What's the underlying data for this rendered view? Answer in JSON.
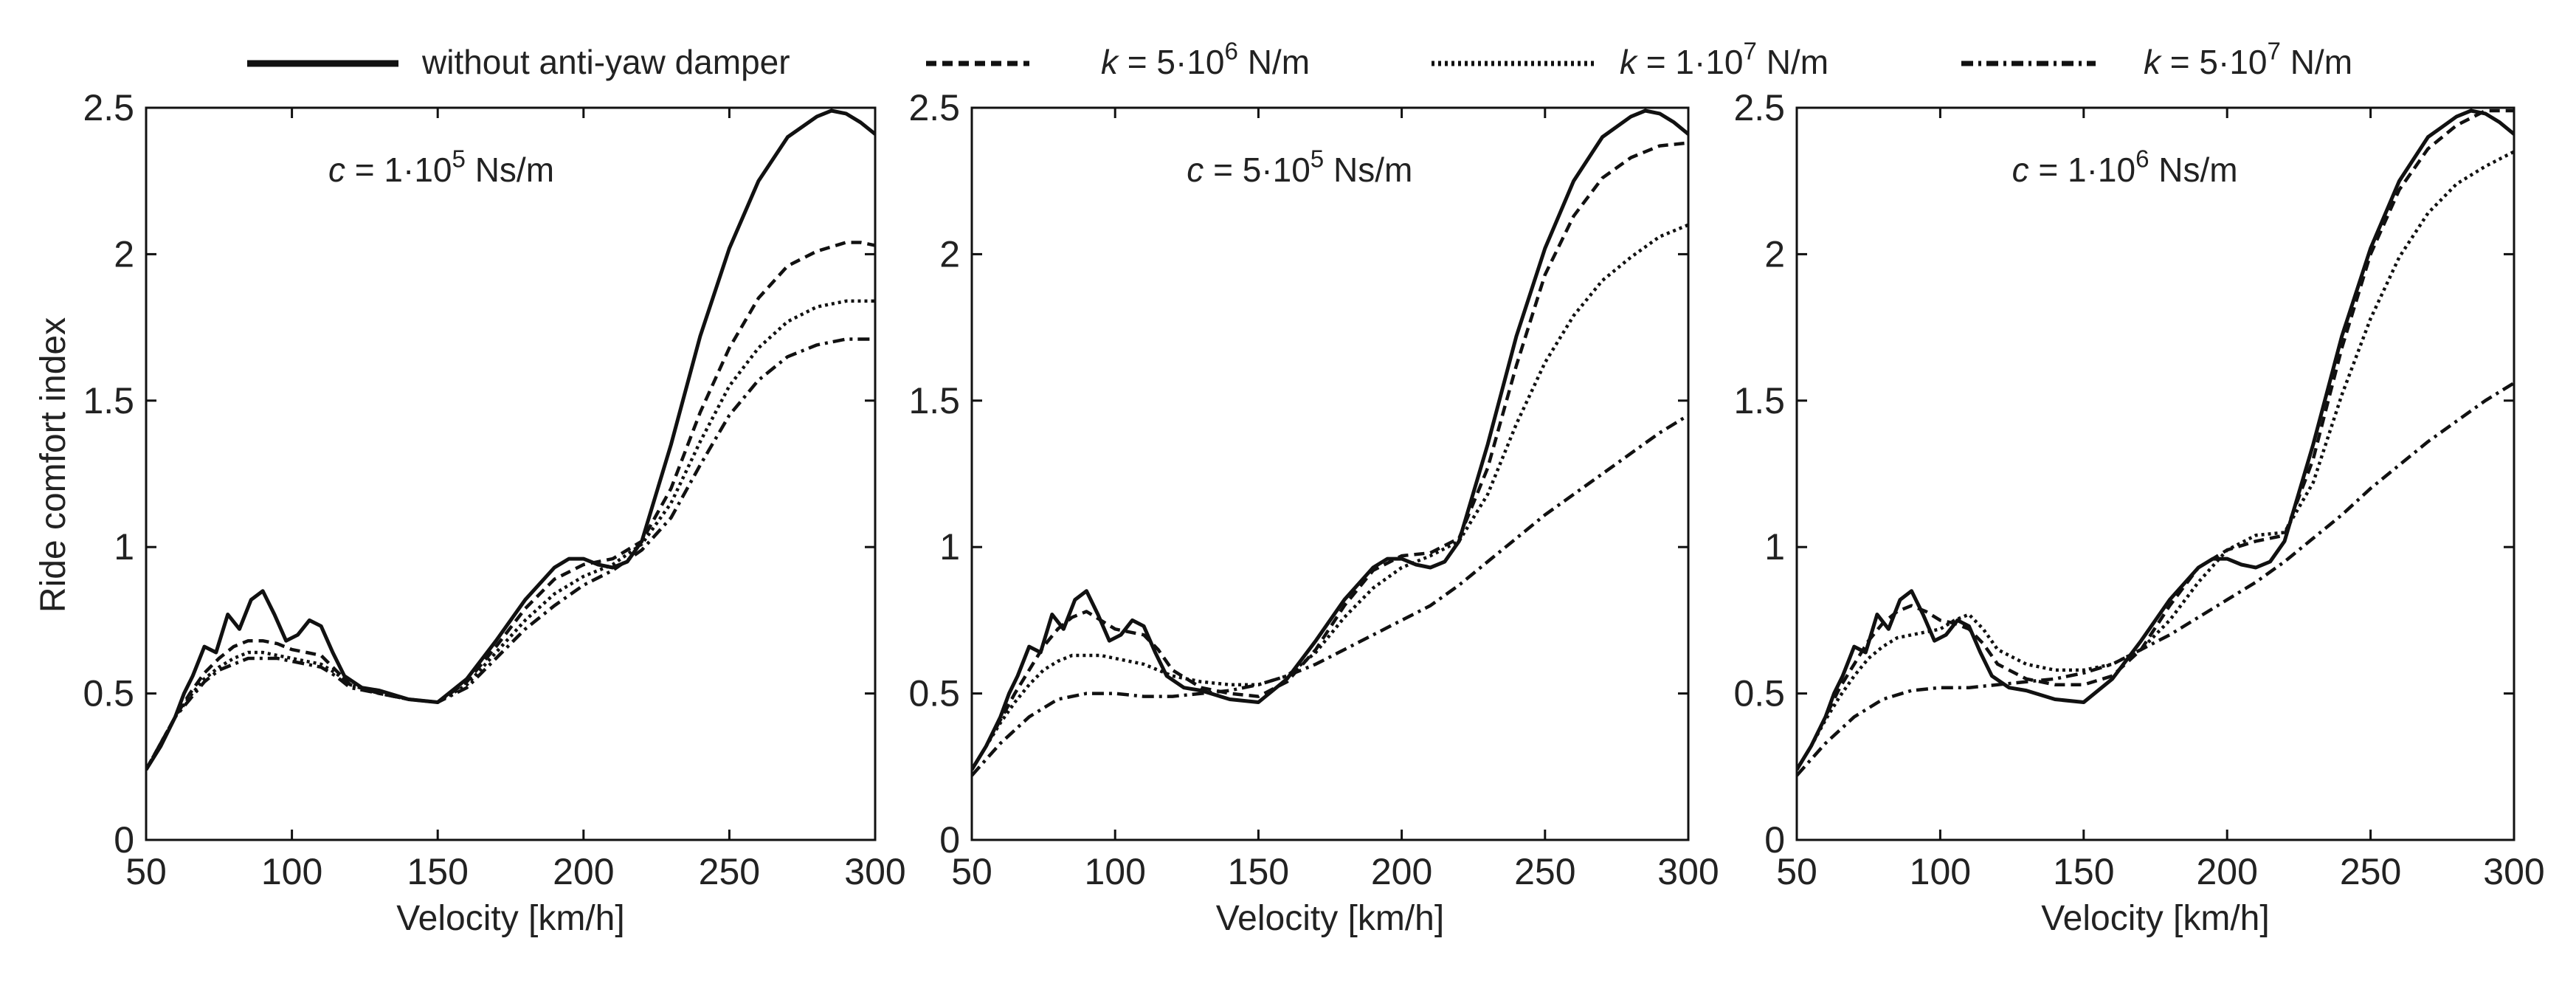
{
  "figure": {
    "legend": [
      {
        "label": "without anti-yaw damper",
        "style": "solid"
      },
      {
        "prefix": "k",
        "mid": " = 5·10",
        "exp": "6",
        "unit": " N/m",
        "style": "dashed"
      },
      {
        "prefix": "k",
        "mid": " = 1·10",
        "exp": "7",
        "unit": " N/m",
        "style": "dotted"
      },
      {
        "prefix": "k",
        "mid": " = 5·10",
        "exp": "7",
        "unit": " N/m",
        "style": "dashdot"
      }
    ],
    "ylabel_text": "Ride comfort index"
  },
  "chart_data": [
    {
      "type": "line",
      "annotation": {
        "prefix": "c",
        "mid": " = 1·10",
        "exp": "5",
        "unit": " Ns/m"
      },
      "xlabel": "Velocity [km/h]",
      "ylabel": "Ride comfort index",
      "xlim": [
        50,
        300
      ],
      "ylim": [
        0,
        2.5
      ],
      "xticks": [
        50,
        100,
        150,
        200,
        250,
        300
      ],
      "yticks": [
        0,
        0.5,
        1,
        1.5,
        2,
        2.5
      ],
      "ytick_labels": [
        "0",
        "0.5",
        "1",
        "1.5",
        "2",
        "2.5"
      ],
      "series": [
        {
          "name": "without anti-yaw damper",
          "x": [
            50,
            55,
            60,
            63,
            66,
            70,
            74,
            78,
            82,
            86,
            90,
            94,
            98,
            102,
            106,
            110,
            114,
            118,
            124,
            130,
            140,
            150,
            160,
            170,
            180,
            190,
            195,
            200,
            205,
            210,
            215,
            220,
            230,
            240,
            250,
            260,
            270,
            280,
            285,
            290,
            295,
            300
          ],
          "y": [
            0.24,
            0.32,
            0.42,
            0.5,
            0.56,
            0.66,
            0.64,
            0.77,
            0.72,
            0.82,
            0.85,
            0.77,
            0.68,
            0.7,
            0.75,
            0.73,
            0.64,
            0.56,
            0.52,
            0.51,
            0.48,
            0.47,
            0.55,
            0.68,
            0.82,
            0.93,
            0.96,
            0.96,
            0.94,
            0.93,
            0.95,
            1.02,
            1.35,
            1.72,
            2.02,
            2.25,
            2.4,
            2.47,
            2.49,
            2.48,
            2.45,
            2.41
          ]
        },
        {
          "name": "k = 5·10^6 N/m",
          "x": [
            50,
            55,
            60,
            65,
            70,
            75,
            80,
            85,
            90,
            95,
            100,
            105,
            110,
            115,
            120,
            130,
            140,
            150,
            160,
            170,
            180,
            190,
            200,
            210,
            220,
            230,
            240,
            250,
            260,
            270,
            280,
            290,
            295,
            300
          ],
          "y": [
            0.24,
            0.33,
            0.42,
            0.5,
            0.57,
            0.62,
            0.66,
            0.68,
            0.68,
            0.67,
            0.65,
            0.64,
            0.63,
            0.58,
            0.53,
            0.5,
            0.48,
            0.47,
            0.54,
            0.66,
            0.79,
            0.89,
            0.94,
            0.96,
            1.02,
            1.2,
            1.46,
            1.68,
            1.85,
            1.96,
            2.01,
            2.04,
            2.04,
            2.03
          ]
        },
        {
          "name": "k = 1·10^7 N/m",
          "x": [
            50,
            55,
            60,
            65,
            70,
            75,
            80,
            85,
            90,
            95,
            100,
            105,
            110,
            115,
            120,
            130,
            140,
            150,
            160,
            170,
            180,
            190,
            200,
            210,
            220,
            230,
            240,
            250,
            260,
            270,
            280,
            290,
            300
          ],
          "y": [
            0.24,
            0.33,
            0.42,
            0.49,
            0.55,
            0.59,
            0.62,
            0.64,
            0.64,
            0.63,
            0.62,
            0.61,
            0.6,
            0.57,
            0.53,
            0.5,
            0.48,
            0.47,
            0.53,
            0.64,
            0.75,
            0.84,
            0.9,
            0.94,
            1.01,
            1.15,
            1.36,
            1.55,
            1.68,
            1.77,
            1.82,
            1.84,
            1.84
          ]
        },
        {
          "name": "k = 5·10^7 N/m",
          "x": [
            50,
            55,
            60,
            65,
            70,
            75,
            80,
            85,
            90,
            95,
            100,
            105,
            110,
            115,
            120,
            130,
            140,
            150,
            160,
            170,
            180,
            190,
            200,
            210,
            220,
            230,
            240,
            250,
            260,
            270,
            280,
            290,
            300
          ],
          "y": [
            0.24,
            0.33,
            0.42,
            0.48,
            0.54,
            0.58,
            0.6,
            0.62,
            0.62,
            0.62,
            0.61,
            0.6,
            0.59,
            0.56,
            0.52,
            0.5,
            0.48,
            0.47,
            0.52,
            0.62,
            0.72,
            0.8,
            0.87,
            0.92,
            0.99,
            1.1,
            1.28,
            1.45,
            1.57,
            1.65,
            1.69,
            1.71,
            1.71
          ]
        }
      ]
    },
    {
      "type": "line",
      "annotation": {
        "prefix": "c",
        "mid": " = 5·10",
        "exp": "5",
        "unit": " Ns/m"
      },
      "xlabel": "Velocity [km/h]",
      "ylabel": "",
      "xlim": [
        50,
        300
      ],
      "ylim": [
        0,
        2.5
      ],
      "xticks": [
        50,
        100,
        150,
        200,
        250,
        300
      ],
      "yticks": [
        0,
        0.5,
        1,
        1.5,
        2,
        2.5
      ],
      "ytick_labels": [
        "0",
        "0.5",
        "1",
        "1.5",
        "2",
        "2.5"
      ],
      "series": [
        {
          "name": "without anti-yaw damper",
          "x": [
            50,
            55,
            60,
            63,
            66,
            70,
            74,
            78,
            82,
            86,
            90,
            94,
            98,
            102,
            106,
            110,
            114,
            118,
            124,
            130,
            140,
            150,
            160,
            170,
            180,
            190,
            195,
            200,
            205,
            210,
            215,
            220,
            230,
            240,
            250,
            260,
            270,
            280,
            285,
            290,
            295,
            300
          ],
          "y": [
            0.24,
            0.32,
            0.42,
            0.5,
            0.56,
            0.66,
            0.64,
            0.77,
            0.72,
            0.82,
            0.85,
            0.77,
            0.68,
            0.7,
            0.75,
            0.73,
            0.64,
            0.56,
            0.52,
            0.51,
            0.48,
            0.47,
            0.55,
            0.68,
            0.82,
            0.93,
            0.96,
            0.96,
            0.94,
            0.93,
            0.95,
            1.02,
            1.35,
            1.72,
            2.02,
            2.25,
            2.4,
            2.47,
            2.49,
            2.48,
            2.45,
            2.41
          ]
        },
        {
          "name": "k = 5·10^6 N/m",
          "x": [
            50,
            55,
            60,
            65,
            70,
            75,
            80,
            85,
            90,
            95,
            100,
            105,
            110,
            115,
            120,
            130,
            140,
            150,
            160,
            170,
            180,
            190,
            200,
            210,
            220,
            230,
            240,
            250,
            260,
            270,
            280,
            290,
            300
          ],
          "y": [
            0.24,
            0.32,
            0.41,
            0.5,
            0.58,
            0.66,
            0.72,
            0.76,
            0.78,
            0.75,
            0.72,
            0.71,
            0.7,
            0.65,
            0.58,
            0.52,
            0.5,
            0.49,
            0.54,
            0.65,
            0.8,
            0.92,
            0.97,
            0.98,
            1.03,
            1.27,
            1.62,
            1.93,
            2.13,
            2.26,
            2.33,
            2.37,
            2.38
          ]
        },
        {
          "name": "k = 1·10^7 N/m",
          "x": [
            50,
            55,
            60,
            65,
            70,
            75,
            80,
            85,
            90,
            95,
            100,
            105,
            110,
            115,
            120,
            130,
            140,
            150,
            160,
            170,
            180,
            190,
            200,
            210,
            220,
            230,
            240,
            250,
            260,
            270,
            280,
            290,
            300
          ],
          "y": [
            0.24,
            0.32,
            0.4,
            0.47,
            0.53,
            0.58,
            0.61,
            0.63,
            0.63,
            0.63,
            0.62,
            0.61,
            0.6,
            0.58,
            0.56,
            0.54,
            0.53,
            0.53,
            0.56,
            0.64,
            0.76,
            0.86,
            0.93,
            0.97,
            1.02,
            1.18,
            1.42,
            1.63,
            1.79,
            1.91,
            1.99,
            2.06,
            2.1
          ]
        },
        {
          "name": "k = 5·10^7 N/m",
          "x": [
            50,
            60,
            70,
            80,
            90,
            100,
            110,
            120,
            130,
            140,
            150,
            160,
            170,
            180,
            190,
            200,
            210,
            220,
            230,
            240,
            250,
            260,
            270,
            280,
            290,
            300
          ],
          "y": [
            0.22,
            0.33,
            0.42,
            0.48,
            0.5,
            0.5,
            0.49,
            0.49,
            0.5,
            0.51,
            0.53,
            0.56,
            0.6,
            0.65,
            0.7,
            0.75,
            0.8,
            0.87,
            0.95,
            1.03,
            1.11,
            1.18,
            1.25,
            1.32,
            1.39,
            1.45
          ]
        }
      ]
    },
    {
      "type": "line",
      "annotation": {
        "prefix": "c",
        "mid": " = 1·10",
        "exp": "6",
        "unit": " Ns/m"
      },
      "xlabel": "Velocity [km/h]",
      "ylabel": "",
      "xlim": [
        50,
        300
      ],
      "ylim": [
        0,
        2.5
      ],
      "xticks": [
        50,
        100,
        150,
        200,
        250,
        300
      ],
      "yticks": [
        0,
        0.5,
        1,
        1.5,
        2,
        2.5
      ],
      "ytick_labels": [
        "0",
        "0.5",
        "1",
        "1.5",
        "2",
        "2.5"
      ],
      "series": [
        {
          "name": "without anti-yaw damper",
          "x": [
            50,
            55,
            60,
            63,
            66,
            70,
            74,
            78,
            82,
            86,
            90,
            94,
            98,
            102,
            106,
            110,
            114,
            118,
            124,
            130,
            140,
            150,
            160,
            170,
            180,
            190,
            195,
            200,
            205,
            210,
            215,
            220,
            230,
            240,
            250,
            260,
            270,
            280,
            285,
            290,
            295,
            300
          ],
          "y": [
            0.24,
            0.32,
            0.42,
            0.5,
            0.56,
            0.66,
            0.64,
            0.77,
            0.72,
            0.82,
            0.85,
            0.77,
            0.68,
            0.7,
            0.75,
            0.73,
            0.64,
            0.56,
            0.52,
            0.51,
            0.48,
            0.47,
            0.55,
            0.68,
            0.82,
            0.93,
            0.96,
            0.96,
            0.94,
            0.93,
            0.95,
            1.02,
            1.35,
            1.72,
            2.02,
            2.25,
            2.4,
            2.47,
            2.49,
            2.48,
            2.45,
            2.41
          ]
        },
        {
          "name": "k = 5·10^6 N/m",
          "x": [
            50,
            55,
            60,
            65,
            70,
            75,
            80,
            85,
            90,
            95,
            100,
            105,
            110,
            115,
            120,
            130,
            140,
            150,
            160,
            170,
            180,
            190,
            200,
            210,
            220,
            230,
            240,
            250,
            260,
            270,
            280,
            290,
            300
          ],
          "y": [
            0.24,
            0.32,
            0.42,
            0.52,
            0.6,
            0.68,
            0.74,
            0.78,
            0.8,
            0.78,
            0.75,
            0.74,
            0.72,
            0.67,
            0.6,
            0.55,
            0.53,
            0.53,
            0.56,
            0.65,
            0.8,
            0.93,
            0.99,
            1.02,
            1.04,
            1.3,
            1.68,
            2.0,
            2.22,
            2.36,
            2.44,
            2.49,
            2.49
          ]
        },
        {
          "name": "k = 1·10^7 N/m",
          "x": [
            50,
            55,
            60,
            65,
            70,
            75,
            80,
            85,
            90,
            95,
            100,
            105,
            110,
            115,
            120,
            130,
            140,
            150,
            160,
            170,
            180,
            190,
            200,
            210,
            220,
            230,
            240,
            250,
            260,
            270,
            280,
            290,
            300
          ],
          "y": [
            0.24,
            0.32,
            0.41,
            0.49,
            0.56,
            0.62,
            0.66,
            0.69,
            0.7,
            0.71,
            0.72,
            0.75,
            0.77,
            0.72,
            0.65,
            0.6,
            0.58,
            0.58,
            0.6,
            0.65,
            0.75,
            0.88,
            0.99,
            1.04,
            1.05,
            1.22,
            1.52,
            1.78,
            1.99,
            2.14,
            2.24,
            2.3,
            2.35
          ]
        },
        {
          "name": "k = 5·10^7 N/m",
          "x": [
            50,
            60,
            70,
            80,
            90,
            100,
            110,
            120,
            130,
            140,
            150,
            160,
            170,
            180,
            190,
            200,
            210,
            220,
            230,
            240,
            250,
            260,
            270,
            280,
            290,
            300
          ],
          "y": [
            0.22,
            0.33,
            0.42,
            0.48,
            0.51,
            0.52,
            0.52,
            0.53,
            0.54,
            0.55,
            0.57,
            0.6,
            0.65,
            0.7,
            0.76,
            0.82,
            0.88,
            0.95,
            1.03,
            1.11,
            1.2,
            1.28,
            1.36,
            1.43,
            1.5,
            1.56
          ]
        }
      ]
    }
  ]
}
